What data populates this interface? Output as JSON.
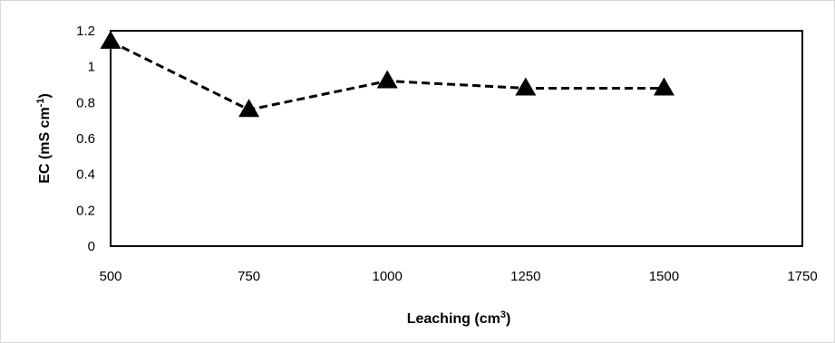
{
  "chart_data": {
    "type": "line",
    "title": "",
    "xlabel": "Leaching (cm",
    "xlabel_sup": "3",
    "xlabel_end": ")",
    "ylabel": "EC (mS cm",
    "ylabel_sup": "-1",
    "ylabel_end": ")",
    "xlim": [
      500,
      1750
    ],
    "ylim": [
      0,
      1.2
    ],
    "x_ticks": [
      "500",
      "750",
      "1000",
      "1250",
      "1500",
      "1750"
    ],
    "y_ticks": [
      "0",
      "0.2",
      "0.4",
      "0.6",
      "0.8",
      "1",
      "1.2"
    ],
    "grid": false,
    "legend": "none",
    "series": [
      {
        "marker": "triangle",
        "line_style": "dashed",
        "color": "#000000",
        "x": [
          500,
          750,
          1000,
          1250,
          1500
        ],
        "y": [
          1.14,
          0.76,
          0.92,
          0.88,
          0.88
        ]
      }
    ]
  }
}
